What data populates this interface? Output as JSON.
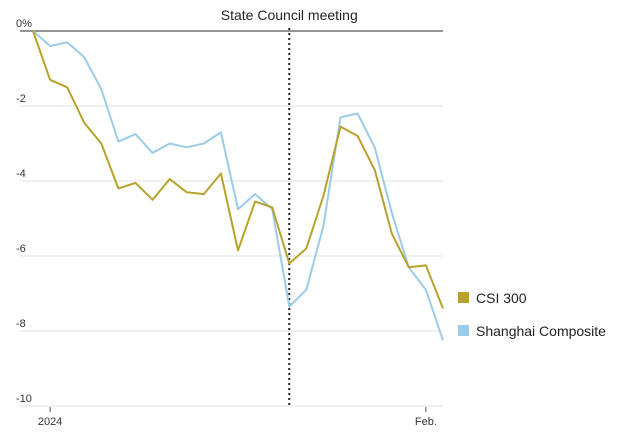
{
  "chart_data": {
    "type": "line",
    "ylim": [
      -10,
      0
    ],
    "y_ticks": [
      {
        "value": 0,
        "label": "0%"
      },
      {
        "value": -2,
        "label": "-2"
      },
      {
        "value": -4,
        "label": "-4"
      },
      {
        "value": -6,
        "label": "-6"
      },
      {
        "value": -8,
        "label": "-8"
      },
      {
        "value": -10,
        "label": "-10"
      }
    ],
    "x_ticks": [
      {
        "index": 1,
        "label": "2024"
      },
      {
        "index": 23,
        "label": "Feb."
      }
    ],
    "annotation": {
      "index": 15,
      "label": "State Council meeting"
    },
    "grid": "horizontal",
    "legend_position": "right",
    "series": [
      {
        "name": "CSI 300",
        "color": "#b8a22e",
        "values": [
          0,
          -1.3,
          -1.5,
          -2.45,
          -3.0,
          -4.2,
          -4.05,
          -4.5,
          -3.95,
          -4.3,
          -4.35,
          -3.8,
          -5.85,
          -4.55,
          -4.7,
          -6.2,
          -5.8,
          -4.4,
          -2.55,
          -2.8,
          -3.7,
          -5.4,
          -6.3,
          -6.25,
          -7.4
        ]
      },
      {
        "name": "Shanghai Composite",
        "color": "#9ccbe8",
        "values": [
          0,
          -0.4,
          -0.3,
          -0.7,
          -1.55,
          -2.95,
          -2.75,
          -3.25,
          -3.0,
          -3.1,
          -3.0,
          -2.7,
          -4.75,
          -4.35,
          -4.75,
          -7.35,
          -6.9,
          -5.2,
          -2.3,
          -2.2,
          -3.1,
          -4.85,
          -6.3,
          -6.9,
          -8.25
        ]
      }
    ]
  }
}
